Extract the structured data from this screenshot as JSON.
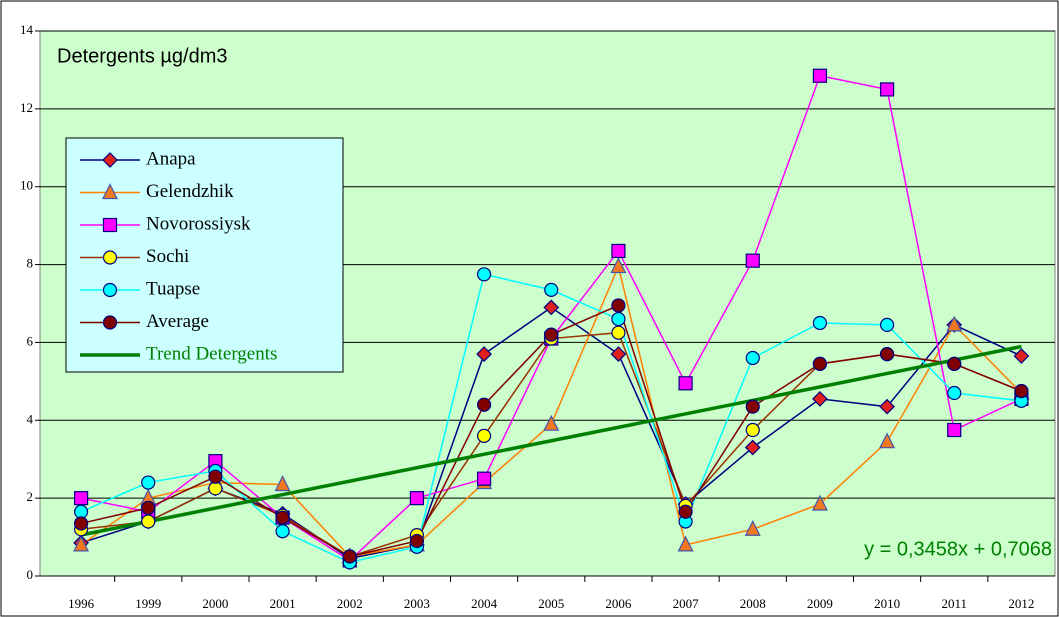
{
  "chart_data": {
    "type": "line",
    "title": "Detergents µg/dm3",
    "categories": [
      "1996",
      "1999",
      "2000",
      "2001",
      "2002",
      "2003",
      "2004",
      "2005",
      "2006",
      "2007",
      "2008",
      "2009",
      "2010",
      "2011",
      "2012"
    ],
    "series": [
      {
        "name": "Anapa",
        "color": "#000080",
        "marker": "diamond",
        "marker_fill": "#e0201c",
        "values": [
          0.85,
          1.4,
          2.25,
          1.6,
          0.45,
          0.8,
          5.7,
          6.9,
          5.7,
          1.85,
          3.3,
          4.55,
          4.35,
          6.45,
          5.65
        ]
      },
      {
        "name": "Gelendzhik",
        "color": "#ff8000",
        "marker": "triangle",
        "marker_fill": "#f07820",
        "values": [
          0.8,
          2.0,
          2.4,
          2.35,
          0.5,
          0.8,
          2.4,
          3.9,
          7.95,
          0.8,
          1.2,
          1.85,
          3.45,
          6.45,
          4.7
        ]
      },
      {
        "name": "Novorossiysk",
        "color": "#ff00ff",
        "marker": "square",
        "marker_fill": "#ff00ff",
        "values": [
          2.0,
          1.65,
          2.95,
          1.5,
          0.4,
          2.0,
          2.5,
          6.1,
          8.35,
          4.95,
          8.1,
          12.85,
          12.5,
          3.75,
          4.55
        ]
      },
      {
        "name": "Sochi",
        "color": "#993300",
        "marker": "circle",
        "marker_fill": "#ffff00",
        "values": [
          1.2,
          1.4,
          2.25,
          1.55,
          0.5,
          1.05,
          3.6,
          6.1,
          6.25,
          1.8,
          3.75,
          5.45,
          5.7,
          5.45,
          4.75
        ]
      },
      {
        "name": "Tuapse",
        "color": "#00ffff",
        "marker": "circle",
        "marker_fill": "#00ffff",
        "values": [
          1.65,
          2.4,
          2.7,
          1.15,
          0.35,
          0.75,
          7.75,
          7.35,
          6.6,
          1.4,
          5.6,
          6.5,
          6.45,
          4.7,
          4.5
        ]
      },
      {
        "name": "Average",
        "color": "#800000",
        "marker": "circle",
        "marker_fill": "#800000",
        "values": [
          1.35,
          1.75,
          2.55,
          1.5,
          0.5,
          0.9,
          4.4,
          6.2,
          6.95,
          1.65,
          4.35,
          5.45,
          5.7,
          5.45,
          4.75
        ]
      }
    ],
    "trend": {
      "name": "Trend Detergents",
      "color": "#008000",
      "slope": 0.3458,
      "intercept": 0.7068,
      "equation": "y = 0,3458x + 0,7068"
    },
    "ylim": [
      0,
      14
    ],
    "yticks": [
      0,
      2,
      4,
      6,
      8,
      10,
      12,
      14
    ],
    "grid": true
  }
}
